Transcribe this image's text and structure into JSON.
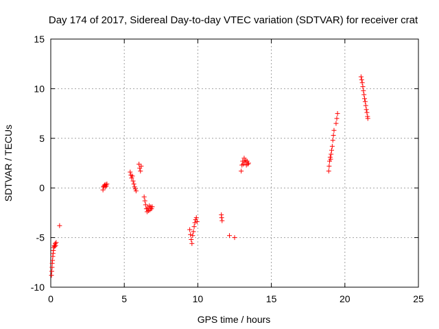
{
  "chart_data": {
    "type": "scatter",
    "title": "Day 174 of 2017, Sidereal Day-to-day VTEC variation (SDTVAR) for receiver crat",
    "xlabel": "GPS time / hours",
    "ylabel": "SDTVAR / TECUs",
    "xlim": [
      0,
      25
    ],
    "ylim": [
      -10,
      15
    ],
    "xticks": [
      0,
      5,
      10,
      15,
      20,
      25
    ],
    "yticks": [
      -10,
      -5,
      0,
      5,
      10,
      15
    ],
    "grid": true,
    "marker": "+",
    "marker_color": "#ff0000",
    "series": [
      {
        "name": "SDTVAR",
        "points": [
          [
            0.05,
            -8.8
          ],
          [
            0.07,
            -8.4
          ],
          [
            0.09,
            -8.0
          ],
          [
            0.1,
            -7.6
          ],
          [
            0.12,
            -7.3
          ],
          [
            0.14,
            -6.9
          ],
          [
            0.16,
            -6.6
          ],
          [
            0.18,
            -6.3
          ],
          [
            0.2,
            -6.0
          ],
          [
            0.23,
            -5.8
          ],
          [
            0.27,
            -5.9
          ],
          [
            0.3,
            -5.6
          ],
          [
            0.33,
            -5.8
          ],
          [
            0.37,
            -5.5
          ],
          [
            0.6,
            -3.8
          ],
          [
            3.55,
            -0.2
          ],
          [
            3.58,
            0.1
          ],
          [
            3.62,
            0.2
          ],
          [
            3.66,
            0.3
          ],
          [
            3.7,
            0.1
          ],
          [
            3.74,
            0.35
          ],
          [
            3.78,
            0.2
          ],
          [
            3.82,
            0.4
          ],
          [
            5.4,
            1.6
          ],
          [
            5.45,
            1.3
          ],
          [
            5.5,
            1.0
          ],
          [
            5.55,
            1.2
          ],
          [
            5.6,
            0.7
          ],
          [
            5.65,
            0.4
          ],
          [
            5.7,
            0.1
          ],
          [
            5.75,
            -0.1
          ],
          [
            5.8,
            -0.3
          ],
          [
            6.0,
            2.4
          ],
          [
            6.05,
            2.0
          ],
          [
            6.1,
            1.7
          ],
          [
            6.15,
            2.2
          ],
          [
            6.35,
            -0.9
          ],
          [
            6.4,
            -1.3
          ],
          [
            6.45,
            -1.7
          ],
          [
            6.5,
            -2.1
          ],
          [
            6.55,
            -2.4
          ],
          [
            6.6,
            -2.0
          ],
          [
            6.65,
            -2.3
          ],
          [
            6.7,
            -1.8
          ],
          [
            6.75,
            -2.2
          ],
          [
            6.8,
            -1.9
          ],
          [
            6.85,
            -2.1
          ],
          [
            6.9,
            -1.9
          ],
          [
            9.45,
            -4.2
          ],
          [
            9.5,
            -4.7
          ],
          [
            9.55,
            -5.2
          ],
          [
            9.6,
            -5.6
          ],
          [
            9.65,
            -4.8
          ],
          [
            9.7,
            -4.4
          ],
          [
            9.75,
            -3.9
          ],
          [
            9.8,
            -3.5
          ],
          [
            9.85,
            -3.2
          ],
          [
            9.9,
            -3.0
          ],
          [
            9.95,
            -3.4
          ],
          [
            11.6,
            -2.7
          ],
          [
            11.62,
            -3.0
          ],
          [
            11.65,
            -3.3
          ],
          [
            12.15,
            -4.8
          ],
          [
            12.5,
            -5.0
          ],
          [
            12.95,
            1.7
          ],
          [
            13.0,
            2.3
          ],
          [
            13.05,
            2.7
          ],
          [
            13.1,
            2.4
          ],
          [
            13.15,
            3.0
          ],
          [
            13.2,
            2.6
          ],
          [
            13.25,
            2.8
          ],
          [
            13.3,
            2.3
          ],
          [
            13.35,
            2.7
          ],
          [
            13.4,
            2.4
          ],
          [
            13.45,
            2.5
          ],
          [
            18.9,
            1.7
          ],
          [
            18.93,
            2.2
          ],
          [
            18.96,
            2.7
          ],
          [
            19.0,
            3.1
          ],
          [
            19.03,
            2.9
          ],
          [
            19.06,
            3.4
          ],
          [
            19.1,
            3.8
          ],
          [
            19.14,
            4.2
          ],
          [
            19.18,
            4.8
          ],
          [
            19.22,
            5.3
          ],
          [
            19.26,
            5.8
          ],
          [
            19.4,
            6.5
          ],
          [
            19.45,
            7.0
          ],
          [
            19.5,
            7.5
          ],
          [
            21.1,
            11.2
          ],
          [
            21.14,
            10.9
          ],
          [
            21.18,
            10.6
          ],
          [
            21.22,
            10.2
          ],
          [
            21.26,
            9.8
          ],
          [
            21.3,
            9.4
          ],
          [
            21.34,
            9.0
          ],
          [
            21.38,
            8.7
          ],
          [
            21.42,
            8.3
          ],
          [
            21.46,
            7.9
          ],
          [
            21.5,
            7.6
          ],
          [
            21.54,
            7.2
          ],
          [
            21.56,
            7.0
          ]
        ]
      }
    ]
  }
}
